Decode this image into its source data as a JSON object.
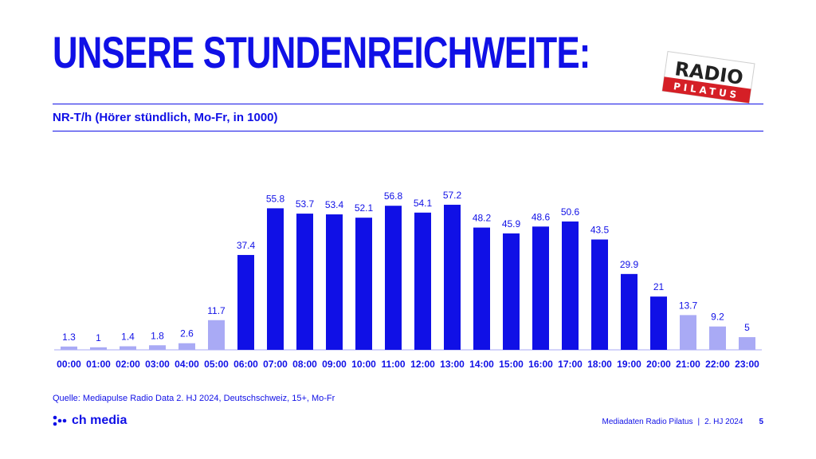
{
  "title": "UNSERE STUNDENREICHWEITE:",
  "subtitle": "NR-T/h (Hörer stündlich, Mo-Fr, in 1000)",
  "logo": {
    "line1": "RADIO",
    "line2": "PILATUS"
  },
  "source": "Quelle: Mediapulse Radio Data 2. HJ 2024, Deutschschweiz, 15+, Mo-Fr",
  "brand": "ch media",
  "footer": {
    "left": "Mediadaten Radio Pilatus",
    "separator": "|",
    "period": "2. HJ 2024",
    "page": "5"
  },
  "colors": {
    "primary": "#1010e6",
    "secondary": "#a9aaf5",
    "logo_red": "#d51f26"
  },
  "chart_data": {
    "type": "bar",
    "categories": [
      "00:00",
      "01:00",
      "02:00",
      "03:00",
      "04:00",
      "05:00",
      "06:00",
      "07:00",
      "08:00",
      "09:00",
      "10:00",
      "11:00",
      "12:00",
      "13:00",
      "14:00",
      "15:00",
      "16:00",
      "17:00",
      "18:00",
      "19:00",
      "20:00",
      "21:00",
      "22:00",
      "23:00"
    ],
    "values": [
      1.3,
      1,
      1.4,
      1.8,
      2.6,
      11.7,
      37.4,
      55.8,
      53.7,
      53.4,
      52.1,
      56.8,
      54.1,
      57.2,
      48.2,
      45.9,
      48.6,
      50.6,
      43.5,
      29.9,
      21,
      13.7,
      9.2,
      5
    ],
    "highlight": [
      "light",
      "light",
      "light",
      "light",
      "light",
      "light",
      "dark",
      "dark",
      "dark",
      "dark",
      "dark",
      "dark",
      "dark",
      "dark",
      "dark",
      "dark",
      "dark",
      "dark",
      "dark",
      "dark",
      "dark",
      "light",
      "light",
      "light"
    ],
    "title": "NR-T/h (Hörer stündlich, Mo-Fr, in 1000)",
    "xlabel": "",
    "ylabel": "",
    "ylim": [
      0,
      60
    ],
    "grid": false,
    "data_labels": true
  }
}
